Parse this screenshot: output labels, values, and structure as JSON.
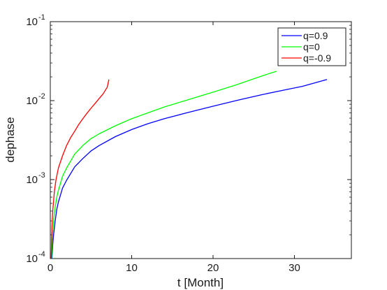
{
  "chart_data": {
    "type": "line",
    "title": "",
    "xlabel": "t [Month]",
    "ylabel": "dephase",
    "xscale": "linear",
    "yscale": "log",
    "xlim": [
      0,
      37
    ],
    "ylim": [
      0.0001,
      0.1
    ],
    "xticks": [
      0,
      10,
      20,
      30
    ],
    "xtick_labels": [
      "0",
      "10",
      "20",
      "30"
    ],
    "yticks": [
      0.0001,
      0.001,
      0.01,
      0.1
    ],
    "ytick_labels": [
      {
        "base": "10",
        "exp": "-4"
      },
      {
        "base": "10",
        "exp": "-3"
      },
      {
        "base": "10",
        "exp": "-2"
      },
      {
        "base": "10",
        "exp": "-1"
      }
    ],
    "grid": false,
    "legend_position": "top-right",
    "series": [
      {
        "name": "q=0.9",
        "color": "#0000ff",
        "x": [
          0.2,
          0.3,
          0.4,
          0.6,
          0.8,
          1.0,
          1.5,
          2,
          3,
          4,
          5,
          6,
          8,
          10,
          12,
          14,
          17,
          20,
          23,
          26,
          29,
          31,
          34
        ],
        "y": [
          0.0001,
          0.00015,
          0.0002,
          0.0003,
          0.00042,
          0.00052,
          0.00078,
          0.00098,
          0.00145,
          0.00185,
          0.0023,
          0.0027,
          0.0035,
          0.0043,
          0.0051,
          0.0059,
          0.0071,
          0.0085,
          0.0101,
          0.0119,
          0.0138,
          0.0152,
          0.0185
        ]
      },
      {
        "name": "q=0",
        "color": "#00ff00",
        "x": [
          0.15,
          0.25,
          0.4,
          0.6,
          0.8,
          1.0,
          1.5,
          2,
          3,
          4,
          5,
          6,
          8,
          10,
          12,
          14,
          17,
          20,
          23,
          26,
          27,
          27.8
        ],
        "y": [
          0.0001,
          0.00018,
          0.0003,
          0.00045,
          0.0006,
          0.00073,
          0.0011,
          0.0014,
          0.0021,
          0.0027,
          0.0033,
          0.0038,
          0.0048,
          0.0059,
          0.007,
          0.0083,
          0.0103,
          0.0128,
          0.016,
          0.0205,
          0.0222,
          0.0235
        ]
      },
      {
        "name": "q=-0.9",
        "color": "#ff0000",
        "x": [
          0.1,
          0.2,
          0.3,
          0.5,
          0.7,
          1.0,
          1.5,
          2,
          2.5,
          3,
          3.5,
          4,
          4.5,
          5,
          5.5,
          6,
          6.5,
          7,
          7.2
        ],
        "y": [
          0.0001,
          0.00025,
          0.0004,
          0.0007,
          0.001,
          0.0014,
          0.002,
          0.0027,
          0.0034,
          0.0041,
          0.005,
          0.0059,
          0.0069,
          0.008,
          0.0092,
          0.0106,
          0.0122,
          0.0148,
          0.0185
        ]
      }
    ]
  }
}
